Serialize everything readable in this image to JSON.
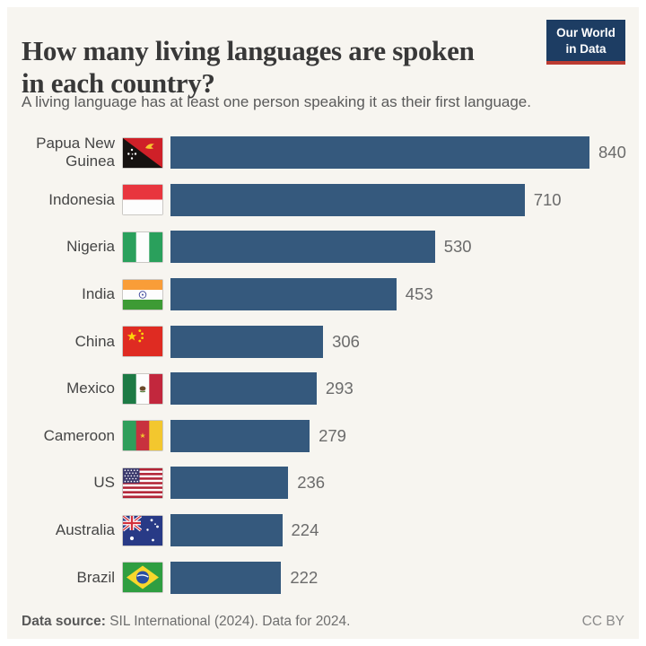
{
  "header": {
    "title": "How many living languages are spoken in each country?",
    "subtitle": "A living language has at least one person speaking it as their first language.",
    "logo": {
      "line1": "Our World",
      "line2": "in Data"
    }
  },
  "chart_data": {
    "type": "bar",
    "orientation": "horizontal",
    "title": "How many living languages are spoken in each country?",
    "xlabel": "",
    "ylabel": "",
    "xlim": [
      0,
      840
    ],
    "grid": false,
    "legend": "none",
    "bar_color": "#35597d",
    "categories": [
      "Papua New Guinea",
      "Indonesia",
      "Nigeria",
      "India",
      "China",
      "Mexico",
      "Cameroon",
      "US",
      "Australia",
      "Brazil"
    ],
    "values": [
      840,
      710,
      530,
      453,
      306,
      293,
      279,
      236,
      224,
      222
    ],
    "value_labels": [
      "840",
      "710",
      "530",
      "453",
      "306",
      "293",
      "279",
      "236",
      "224",
      "222"
    ],
    "flags": [
      "papua-new-guinea",
      "indonesia",
      "nigeria",
      "india",
      "china",
      "mexico",
      "cameroon",
      "us",
      "australia",
      "brazil"
    ]
  },
  "footer": {
    "source_label": "Data source:",
    "source_rest": "SIL International (2024). Data for 2024.",
    "license": "CC BY"
  },
  "colors": {
    "canvas_background": "#f7f5f0",
    "bar": "#35597d",
    "logo_background": "#1d3d63",
    "logo_accent": "#bc3b32",
    "title_text": "#383838",
    "value_text": "#6b6b6b"
  }
}
